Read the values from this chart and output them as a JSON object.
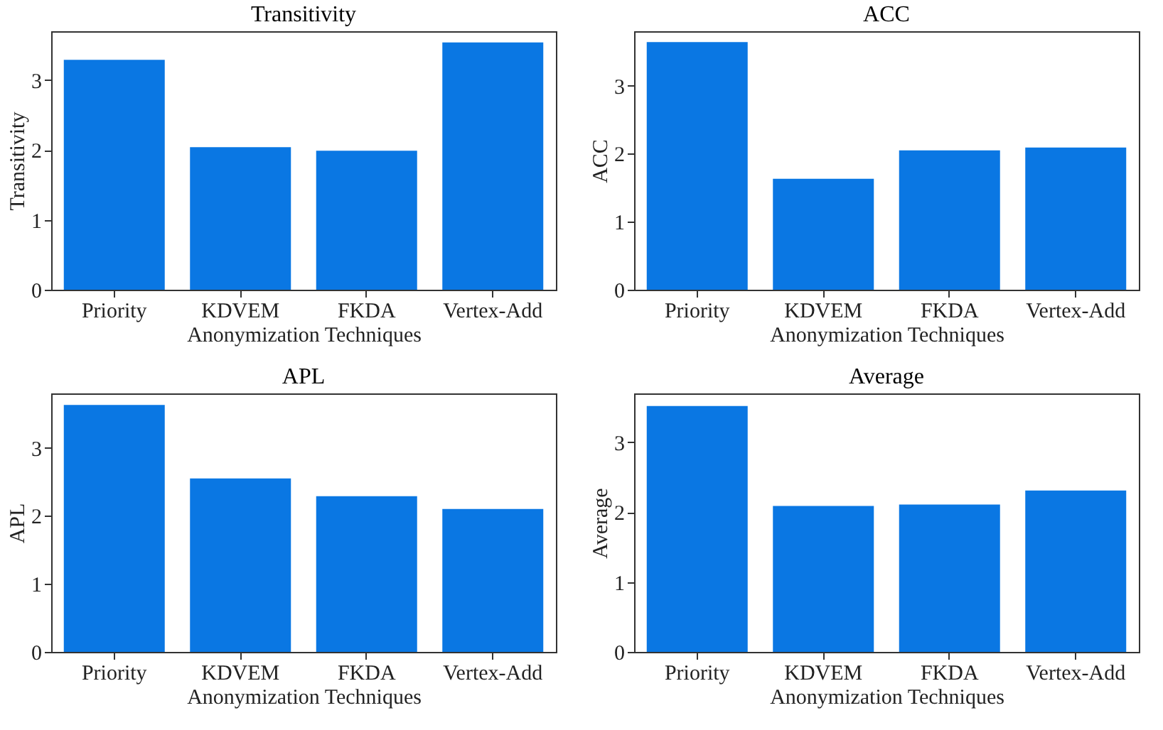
{
  "chart_data": [
    {
      "type": "bar",
      "title": "Transitivity",
      "xlabel": "Anonymization Techniques",
      "ylabel": "Transitivity",
      "categories": [
        "Priority",
        "KDVEM",
        "FKDA",
        "Vertex-Add"
      ],
      "values": [
        3.29,
        2.04,
        1.99,
        3.54
      ],
      "color": "#0a77e3",
      "ylim": [
        0,
        3.7
      ],
      "yticks": [
        0,
        1,
        2,
        3
      ]
    },
    {
      "type": "bar",
      "title": "ACC",
      "xlabel": "Anonymization Techniques",
      "ylabel": "ACC",
      "categories": [
        "Priority",
        "KDVEM",
        "FKDA",
        "Vertex-Add"
      ],
      "values": [
        3.64,
        1.63,
        2.05,
        2.09
      ],
      "color": "#0a77e3",
      "ylim": [
        0,
        3.8
      ],
      "yticks": [
        0,
        1,
        2,
        3
      ]
    },
    {
      "type": "bar",
      "title": "APL",
      "xlabel": "Anonymization Techniques",
      "ylabel": "APL",
      "categories": [
        "Priority",
        "KDVEM",
        "FKDA",
        "Vertex-Add"
      ],
      "values": [
        3.63,
        2.55,
        2.29,
        2.1
      ],
      "color": "#0a77e3",
      "ylim": [
        0,
        3.8
      ],
      "yticks": [
        0,
        1,
        2,
        3
      ]
    },
    {
      "type": "bar",
      "title": "Average",
      "xlabel": "Anonymization Techniques",
      "ylabel": "Average",
      "categories": [
        "Priority",
        "KDVEM",
        "FKDA",
        "Vertex-Add"
      ],
      "values": [
        3.52,
        2.09,
        2.11,
        2.31
      ],
      "color": "#0a77e3",
      "ylim": [
        0,
        3.7
      ],
      "yticks": [
        0,
        1,
        2,
        3
      ]
    }
  ]
}
